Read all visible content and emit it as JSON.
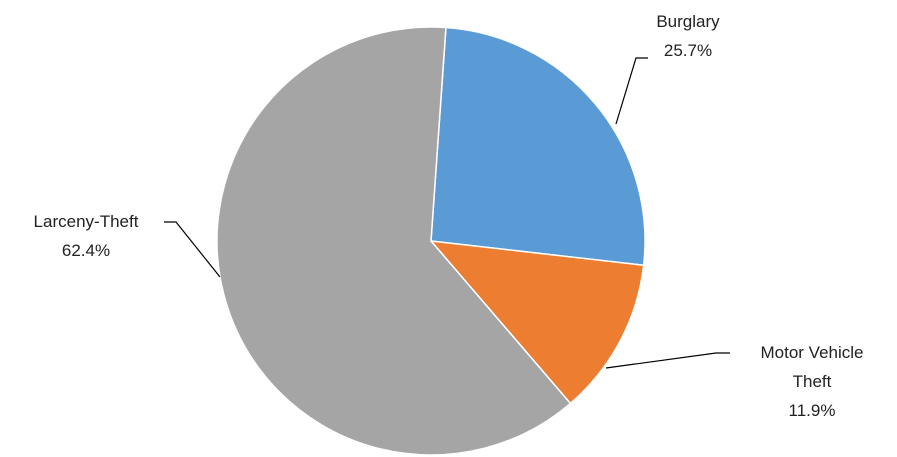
{
  "chart_data": {
    "type": "pie",
    "title": "",
    "start_angle_deg": 4,
    "direction": "clockwise",
    "legend": "none",
    "slices": [
      {
        "label": "Burglary",
        "value": 25.7,
        "value_label": "25.7%",
        "color": "#5b9bd5"
      },
      {
        "label": "Motor Vehicle Theft",
        "label_lines": [
          "Motor Vehicle",
          "Theft"
        ],
        "value": 11.9,
        "value_label": "11.9%",
        "color": "#ed7d31"
      },
      {
        "label": "Larceny-Theft",
        "value": 62.4,
        "value_label": "62.4%",
        "color": "#a5a5a5"
      }
    ]
  }
}
